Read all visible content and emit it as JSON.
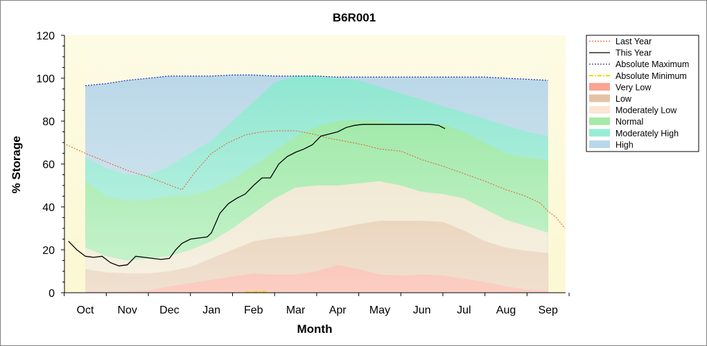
{
  "chart_data": {
    "type": "area",
    "title": "B6R001",
    "xlabel": "Month",
    "ylabel": "% Storage",
    "ylim": [
      0,
      120
    ],
    "yticks": [
      0,
      20,
      40,
      60,
      80,
      100,
      120
    ],
    "categories": [
      "Oct",
      "Nov",
      "Dec",
      "Jan",
      "Feb",
      "Mar",
      "Apr",
      "May",
      "Jun",
      "Jul",
      "Aug",
      "Sep"
    ],
    "legend_position": "right",
    "band_x": [
      0,
      0.5,
      1,
      1.5,
      2,
      2.5,
      3,
      3.5,
      4,
      4.5,
      5,
      5.5,
      6,
      6.5,
      7,
      7.5,
      8,
      8.5,
      9,
      9.5,
      10,
      10.5,
      11
    ],
    "bands": [
      {
        "name": "High",
        "color": "#a7cce6",
        "values": [
          96.5,
          97.5,
          99,
          100,
          101,
          101,
          101,
          101.5,
          101.5,
          101,
          101,
          101,
          100.5,
          100.5,
          100.5,
          100.5,
          100.5,
          100.5,
          100.5,
          100.5,
          100,
          99.5,
          99
        ]
      },
      {
        "name": "Moderately High",
        "color": "#7de8c8",
        "values": [
          63,
          58,
          55,
          55,
          59,
          65,
          71,
          80,
          89,
          98,
          101,
          101,
          100,
          99,
          96,
          93,
          90,
          87,
          84,
          81,
          78,
          75,
          73
        ]
      },
      {
        "name": "Normal",
        "color": "#8ee58e",
        "values": [
          52,
          45,
          43,
          43.5,
          45,
          45.5,
          48,
          53,
          59,
          66,
          73,
          77.5,
          80,
          80.5,
          80,
          79,
          78.5,
          78.5,
          75,
          70,
          65,
          63,
          62
        ]
      },
      {
        "name": "Moderately Low",
        "color": "#fbdfc8",
        "values": [
          21,
          17,
          15,
          16,
          17,
          20,
          24,
          30,
          37,
          44,
          49,
          50,
          50,
          51,
          52,
          50,
          47,
          46,
          44,
          39,
          34,
          31,
          28
        ]
      },
      {
        "name": "Low",
        "color": "#dcb48e",
        "values": [
          11,
          9.5,
          9,
          9,
          10,
          12,
          16,
          20,
          24,
          25.5,
          26.5,
          28,
          30,
          32,
          33.5,
          33.5,
          33.5,
          33,
          29,
          24,
          21,
          19.5,
          18.5
        ]
      },
      {
        "name": "Very Low",
        "color": "#fb8c78",
        "values": [
          0.5,
          0.3,
          0.5,
          1,
          3,
          4.5,
          6,
          7.5,
          9,
          8.5,
          8.5,
          10,
          13,
          11,
          8.5,
          8,
          8.5,
          8,
          6.5,
          5,
          3,
          1.5,
          1
        ]
      }
    ],
    "series": [
      {
        "name": "Last Year",
        "color": "#e0703a",
        "style": "dotted",
        "x": [
          -0.45,
          0,
          0.5,
          1,
          1.5,
          1.9,
          2.1,
          2.3,
          2.6,
          3,
          3.4,
          3.8,
          4.2,
          4.6,
          5,
          5.4,
          5.8,
          6.2,
          6.6,
          7,
          7.5,
          8,
          8.5,
          9,
          9.5,
          10,
          10.4,
          10.8,
          11,
          11.2,
          11.4
        ],
        "values": [
          69,
          65,
          61,
          57,
          54,
          51,
          49.5,
          48,
          56,
          65,
          70,
          73.5,
          75,
          75.5,
          75.5,
          74,
          72,
          70.5,
          69,
          67,
          66,
          62,
          59,
          55.5,
          52,
          48,
          45.5,
          42,
          38,
          35,
          30
        ]
      },
      {
        "name": "This Year",
        "color": "#000000",
        "style": "solid",
        "x": [
          -0.4,
          -0.2,
          0,
          0.2,
          0.4,
          0.6,
          0.8,
          1,
          1.2,
          1.4,
          1.6,
          1.8,
          2,
          2.15,
          2.3,
          2.5,
          2.7,
          2.9,
          3,
          3.2,
          3.4,
          3.6,
          3.8,
          4,
          4.2,
          4.4,
          4.6,
          4.8,
          5,
          5.2,
          5.4,
          5.6,
          5.8,
          6,
          6.2,
          6.4,
          6.6,
          6.8,
          7,
          7.2,
          7.6,
          8,
          8.2,
          8.4,
          8.55
        ],
        "values": [
          24,
          20,
          17,
          16.5,
          17,
          14,
          12.5,
          13,
          17,
          16.5,
          16,
          15.5,
          16,
          20,
          23,
          25,
          25.5,
          26,
          28,
          37,
          41.5,
          44,
          46,
          50,
          53.5,
          53.5,
          60,
          63.5,
          65.5,
          67,
          69,
          73,
          74,
          75,
          77,
          78,
          78.5,
          78.5,
          78.5,
          78.5,
          78.5,
          78.5,
          78.5,
          78,
          76.5
        ]
      },
      {
        "name": "Absolute Maximum",
        "color": "#1f2bb5",
        "style": "dotted",
        "x": [
          0,
          0.5,
          1,
          1.5,
          2,
          2.5,
          3,
          3.5,
          4,
          4.5,
          5,
          5.5,
          6,
          6.5,
          7,
          7.5,
          8,
          8.5,
          9,
          9.5,
          10,
          10.5,
          11
        ],
        "values": [
          96.5,
          97.5,
          99,
          100,
          101,
          101,
          101,
          101.5,
          101.5,
          101,
          101,
          101,
          100.5,
          100.5,
          100.5,
          100.5,
          100.5,
          100.5,
          100.5,
          100.5,
          100,
          99.5,
          99
        ]
      },
      {
        "name": "Absolute Minimum",
        "color": "#e8d800",
        "style": "dashdot",
        "x": [
          3.8,
          4.3
        ],
        "values": [
          0.3,
          0.5
        ]
      }
    ],
    "legend": [
      {
        "label": "Last Year",
        "kind": "line",
        "color": "#e0703a",
        "style": "dotted"
      },
      {
        "label": "This Year",
        "kind": "line",
        "color": "#000000",
        "style": "solid"
      },
      {
        "label": "Absolute Maximum",
        "kind": "line",
        "color": "#1f2bb5",
        "style": "dotted"
      },
      {
        "label": "Absolute Minimum",
        "kind": "line",
        "color": "#e8d800",
        "style": "dashdot"
      },
      {
        "label": "Very Low",
        "kind": "band",
        "color": "#fb8c78"
      },
      {
        "label": "Low",
        "kind": "band",
        "color": "#dcb48e"
      },
      {
        "label": "Moderately Low",
        "kind": "band",
        "color": "#fbdfc8"
      },
      {
        "label": "Normal",
        "kind": "band",
        "color": "#8ee58e"
      },
      {
        "label": "Moderately High",
        "kind": "band",
        "color": "#7de8c8"
      },
      {
        "label": "High",
        "kind": "band",
        "color": "#a7cce6"
      }
    ]
  }
}
